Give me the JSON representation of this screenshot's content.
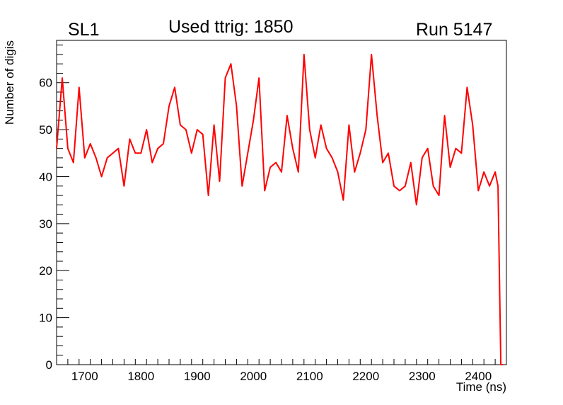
{
  "header": {
    "left": "SL1",
    "center": "Used ttrig: 1850",
    "right": "Run 5147"
  },
  "chart_data": {
    "type": "line",
    "xlabel": "Time (ns)",
    "ylabel": "Number of digis",
    "xlim": [
      1650,
      2450
    ],
    "ylim": [
      0,
      69
    ],
    "xticks": [
      1700,
      1800,
      1900,
      2000,
      2100,
      2200,
      2300,
      2400
    ],
    "yticks": [
      0,
      10,
      20,
      30,
      40,
      50,
      60
    ],
    "line_color": "#ff0000",
    "grid": false,
    "x": [
      1650,
      1660,
      1670,
      1680,
      1690,
      1700,
      1710,
      1720,
      1730,
      1740,
      1750,
      1760,
      1770,
      1780,
      1790,
      1800,
      1810,
      1820,
      1830,
      1840,
      1850,
      1860,
      1870,
      1880,
      1890,
      1900,
      1910,
      1920,
      1930,
      1940,
      1950,
      1960,
      1970,
      1980,
      1990,
      2000,
      2010,
      2020,
      2030,
      2040,
      2050,
      2060,
      2070,
      2080,
      2090,
      2100,
      2110,
      2120,
      2130,
      2140,
      2150,
      2160,
      2170,
      2180,
      2190,
      2200,
      2210,
      2220,
      2230,
      2240,
      2250,
      2260,
      2270,
      2280,
      2290,
      2300,
      2310,
      2320,
      2330,
      2340,
      2350,
      2360,
      2370,
      2380,
      2390,
      2400,
      2410,
      2420,
      2430,
      2435,
      2440,
      2442,
      2444
    ],
    "y": [
      46,
      61,
      46,
      43,
      59,
      44,
      47,
      44,
      40,
      44,
      45,
      46,
      38,
      48,
      45,
      45,
      50,
      43,
      46,
      47,
      55,
      59,
      51,
      50,
      45,
      50,
      49,
      36,
      51,
      39,
      61,
      64,
      55,
      38,
      45,
      52,
      61,
      37,
      42,
      43,
      41,
      53,
      46,
      41,
      66,
      50,
      44,
      51,
      46,
      44,
      41,
      35,
      51,
      41,
      45,
      50,
      66,
      53,
      43,
      45,
      38,
      37,
      38,
      43,
      34,
      44,
      46,
      38,
      36,
      53,
      42,
      46,
      45,
      59,
      51,
      37,
      41,
      38,
      41,
      38,
      0,
      0,
      0
    ]
  }
}
